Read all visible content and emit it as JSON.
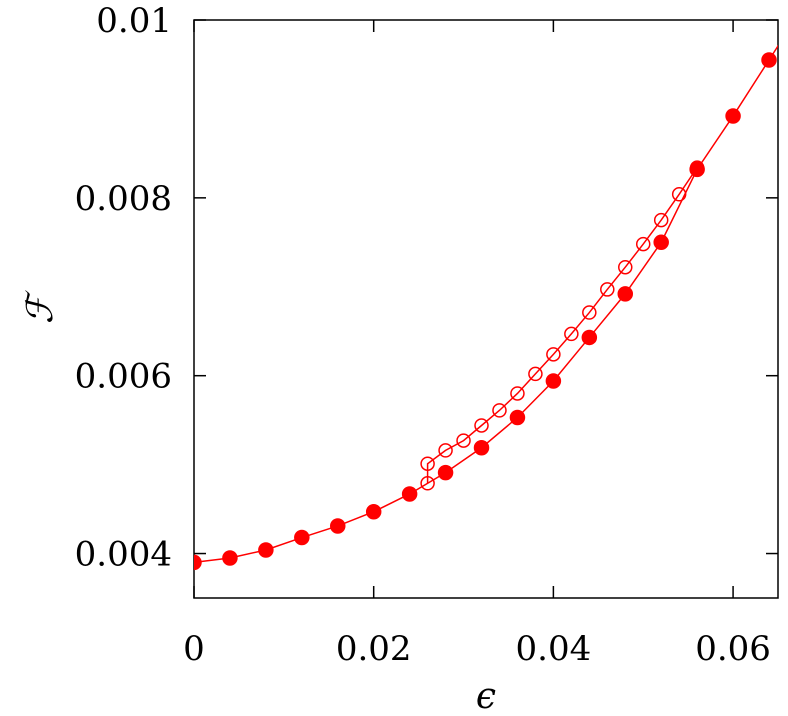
{
  "chart_data": {
    "type": "line",
    "title": "",
    "xlabel": "ϵ",
    "ylabel": "ℱ",
    "xlim": [
      0,
      0.065
    ],
    "ylim": [
      0.0035,
      0.01
    ],
    "xticks": [
      0,
      0.02,
      0.04,
      0.06
    ],
    "xtick_labels": [
      "0",
      "0.02",
      "0.04",
      "0.06"
    ],
    "yticks": [
      0.004,
      0.006,
      0.008,
      0.01
    ],
    "ytick_labels": [
      "0.004",
      "0.006",
      "0.008",
      "0.01"
    ],
    "grid": false,
    "color": "#ff0000",
    "series": [
      {
        "marker": "filled-circle",
        "x": [
          0,
          0.004,
          0.008,
          0.012,
          0.016,
          0.02,
          0.024,
          0.028,
          0.032,
          0.036,
          0.04,
          0.044,
          0.048,
          0.052,
          0.056,
          0.06,
          0.064
        ],
        "y": [
          0.0039,
          0.00395,
          0.00404,
          0.00418,
          0.00431,
          0.00447,
          0.00467,
          0.00491,
          0.00519,
          0.00553,
          0.00594,
          0.00643,
          0.00692,
          0.0075,
          0.00832,
          0.00892,
          0.00955
        ]
      },
      {
        "marker": "open-circle",
        "x": [
          0.026,
          0.026,
          0.028,
          0.03,
          0.032,
          0.034,
          0.036,
          0.038,
          0.04,
          0.042,
          0.044,
          0.046,
          0.048,
          0.05,
          0.052,
          0.054,
          0.056
        ],
        "y": [
          0.00479,
          0.00501,
          0.00516,
          0.00527,
          0.00544,
          0.00561,
          0.0058,
          0.00602,
          0.00624,
          0.00647,
          0.00671,
          0.00697,
          0.00722,
          0.00748,
          0.00775,
          0.00804,
          0.00834
        ]
      }
    ]
  }
}
